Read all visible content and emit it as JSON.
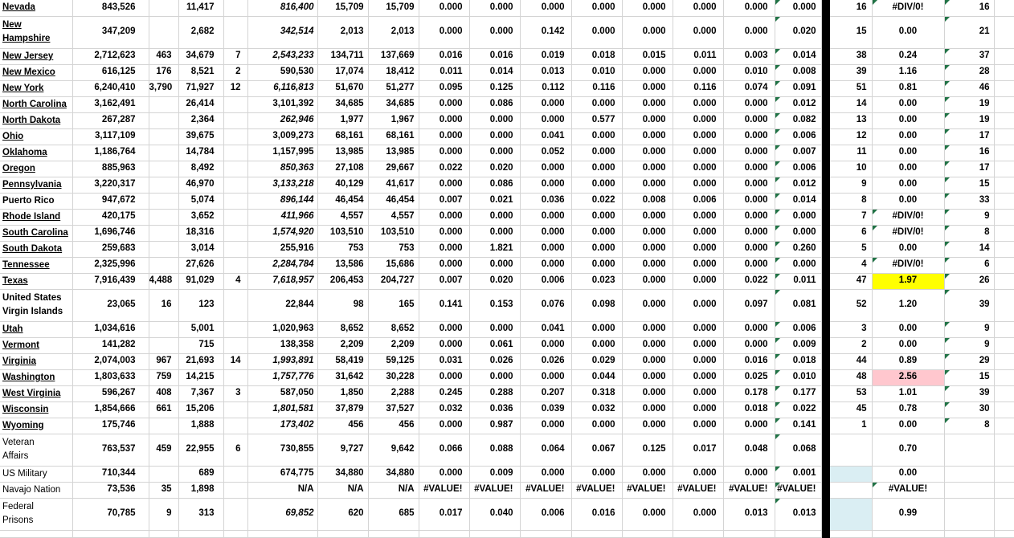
{
  "colors": {
    "highlight_yellow": "#ffff00",
    "highlight_pink": "#ffc7ce",
    "fill_light_blue": "#daeef3",
    "gridline": "#d4d4d4",
    "error_indicator_green": "#217346",
    "separator_black": "#000000"
  },
  "rows": [
    {
      "name": "Nevada",
      "style": "link",
      "b": "843,526",
      "c": "",
      "d": "11,417",
      "e": "",
      "f": "816,400",
      "fi": true,
      "g": "15,709",
      "h": "15,709",
      "dec": [
        "0.000",
        "0.000",
        "0.000",
        "0.000",
        "0.000",
        "0.000",
        "0.000",
        "0.000"
      ],
      "num": "16",
      "ratio": "#DIV/0!",
      "ratioTri": true,
      "last": "16"
    },
    {
      "name": "New\nHampshire",
      "style": "link",
      "tall": true,
      "b": "347,209",
      "c": "",
      "d": "2,682",
      "e": "",
      "f": "342,514",
      "fi": true,
      "g": "2,013",
      "h": "2,013",
      "dec": [
        "0.000",
        "0.000",
        "0.142",
        "0.000",
        "0.000",
        "0.000",
        "0.000",
        "0.020"
      ],
      "num": "15",
      "ratio": "0.00",
      "last": "21"
    },
    {
      "name": "New Jersey",
      "style": "link",
      "b": "2,712,623",
      "c": "463",
      "d": "34,679",
      "e": "7",
      "f": "2,543,233",
      "fi": true,
      "g": "134,711",
      "h": "137,669",
      "dec": [
        "0.016",
        "0.016",
        "0.019",
        "0.018",
        "0.015",
        "0.011",
        "0.003",
        "0.014"
      ],
      "num": "38",
      "ratio": "0.24",
      "last": "37"
    },
    {
      "name": "New Mexico",
      "style": "link",
      "b": "616,125",
      "c": "176",
      "d": "8,521",
      "e": "2",
      "f": "590,530",
      "g": "17,074",
      "h": "18,412",
      "dec": [
        "0.011",
        "0.014",
        "0.013",
        "0.010",
        "0.000",
        "0.000",
        "0.010",
        "0.008"
      ],
      "num": "39",
      "ratio": "1.16",
      "last": "28"
    },
    {
      "name": "New York",
      "style": "link",
      "b": "6,240,410",
      "c": "3,790",
      "d": "71,927",
      "e": "12",
      "f": "6,116,813",
      "fi": true,
      "g": "51,670",
      "h": "51,277",
      "dec": [
        "0.095",
        "0.125",
        "0.112",
        "0.116",
        "0.000",
        "0.116",
        "0.074",
        "0.091"
      ],
      "num": "51",
      "ratio": "0.81",
      "last": "46"
    },
    {
      "name": "North Carolina",
      "style": "link",
      "b": "3,162,491",
      "c": "",
      "d": "26,414",
      "e": "",
      "f": "3,101,392",
      "g": "34,685",
      "h": "34,685",
      "dec": [
        "0.000",
        "0.086",
        "0.000",
        "0.000",
        "0.000",
        "0.000",
        "0.000",
        "0.012"
      ],
      "num": "14",
      "ratio": "0.00",
      "last": "19"
    },
    {
      "name": "North Dakota",
      "style": "link",
      "b": "267,287",
      "c": "",
      "d": "2,364",
      "e": "",
      "f": "262,946",
      "fi": true,
      "g": "1,977",
      "h": "1,967",
      "dec": [
        "0.000",
        "0.000",
        "0.000",
        "0.577",
        "0.000",
        "0.000",
        "0.000",
        "0.082"
      ],
      "num": "13",
      "ratio": "0.00",
      "last": "19"
    },
    {
      "name": "Ohio",
      "style": "link",
      "b": "3,117,109",
      "c": "",
      "d": "39,675",
      "e": "",
      "f": "3,009,273",
      "g": "68,161",
      "h": "68,161",
      "dec": [
        "0.000",
        "0.000",
        "0.041",
        "0.000",
        "0.000",
        "0.000",
        "0.000",
        "0.006"
      ],
      "num": "12",
      "ratio": "0.00",
      "last": "17"
    },
    {
      "name": "Oklahoma",
      "style": "link",
      "b": "1,186,764",
      "c": "",
      "d": "14,784",
      "e": "",
      "f": "1,157,995",
      "g": "13,985",
      "h": "13,985",
      "dec": [
        "0.000",
        "0.000",
        "0.052",
        "0.000",
        "0.000",
        "0.000",
        "0.000",
        "0.007"
      ],
      "num": "11",
      "ratio": "0.00",
      "last": "16"
    },
    {
      "name": "Oregon",
      "style": "link",
      "b": "885,963",
      "c": "",
      "d": "8,492",
      "e": "",
      "f": "850,363",
      "fi": true,
      "g": "27,108",
      "h": "29,667",
      "dec": [
        "0.022",
        "0.020",
        "0.000",
        "0.000",
        "0.000",
        "0.000",
        "0.000",
        "0.006"
      ],
      "num": "10",
      "ratio": "0.00",
      "last": "17"
    },
    {
      "name": "Pennsylvania",
      "style": "link",
      "b": "3,220,317",
      "c": "",
      "d": "46,970",
      "e": "",
      "f": "3,133,218",
      "fi": true,
      "g": "40,129",
      "h": "41,617",
      "dec": [
        "0.000",
        "0.086",
        "0.000",
        "0.000",
        "0.000",
        "0.000",
        "0.000",
        "0.012"
      ],
      "num": "9",
      "ratio": "0.00",
      "last": "15"
    },
    {
      "name": "Puerto Rico",
      "style": "bold",
      "b": "947,672",
      "c": "",
      "d": "5,074",
      "e": "",
      "f": "896,144",
      "fi": true,
      "g": "46,454",
      "h": "46,454",
      "dec": [
        "0.007",
        "0.021",
        "0.036",
        "0.022",
        "0.008",
        "0.006",
        "0.000",
        "0.014"
      ],
      "num": "8",
      "ratio": "0.00",
      "last": "33"
    },
    {
      "name": "Rhode Island",
      "style": "link",
      "b": "420,175",
      "c": "",
      "d": "3,652",
      "e": "",
      "f": "411,966",
      "fi": true,
      "g": "4,557",
      "h": "4,557",
      "dec": [
        "0.000",
        "0.000",
        "0.000",
        "0.000",
        "0.000",
        "0.000",
        "0.000",
        "0.000"
      ],
      "num": "7",
      "ratio": "#DIV/0!",
      "ratioTri": true,
      "last": "9"
    },
    {
      "name": "South Carolina",
      "style": "link",
      "b": "1,696,746",
      "c": "",
      "d": "18,316",
      "e": "",
      "f": "1,574,920",
      "fi": true,
      "g": "103,510",
      "h": "103,510",
      "dec": [
        "0.000",
        "0.000",
        "0.000",
        "0.000",
        "0.000",
        "0.000",
        "0.000",
        "0.000"
      ],
      "num": "6",
      "ratio": "#DIV/0!",
      "ratioTri": true,
      "last": "8"
    },
    {
      "name": "South Dakota",
      "style": "link",
      "b": "259,683",
      "c": "",
      "d": "3,014",
      "e": "",
      "f": "255,916",
      "g": "753",
      "h": "753",
      "dec": [
        "0.000",
        "1.821",
        "0.000",
        "0.000",
        "0.000",
        "0.000",
        "0.000",
        "0.260"
      ],
      "num": "5",
      "ratio": "0.00",
      "last": "14"
    },
    {
      "name": "Tennessee",
      "style": "link",
      "b": "2,325,996",
      "c": "",
      "d": "27,626",
      "e": "",
      "f": "2,284,784",
      "fi": true,
      "g": "13,586",
      "h": "15,686",
      "dec": [
        "0.000",
        "0.000",
        "0.000",
        "0.000",
        "0.000",
        "0.000",
        "0.000",
        "0.000"
      ],
      "num": "4",
      "ratio": "#DIV/0!",
      "ratioTri": true,
      "last": "6"
    },
    {
      "name": "Texas",
      "style": "link",
      "b": "7,916,439",
      "c": "4,488",
      "d": "91,029",
      "e": "4",
      "f": "7,618,957",
      "fi": true,
      "g": "206,453",
      "h": "204,727",
      "dec": [
        "0.007",
        "0.020",
        "0.006",
        "0.023",
        "0.000",
        "0.000",
        "0.022",
        "0.011"
      ],
      "num": "47",
      "ratio": "1.97",
      "ratioBg": "yellow",
      "last": "26"
    },
    {
      "name": "United States\nVirgin Islands",
      "style": "bold",
      "tall": true,
      "b": "23,065",
      "c": "16",
      "d": "123",
      "e": "",
      "f": "22,844",
      "g": "98",
      "h": "165",
      "dec": [
        "0.141",
        "0.153",
        "0.076",
        "0.098",
        "0.000",
        "0.000",
        "0.097",
        "0.081"
      ],
      "num": "52",
      "ratio": "1.20",
      "last": "39"
    },
    {
      "name": "Utah",
      "style": "link",
      "b": "1,034,616",
      "c": "",
      "d": "5,001",
      "e": "",
      "f": "1,020,963",
      "g": "8,652",
      "h": "8,652",
      "dec": [
        "0.000",
        "0.000",
        "0.041",
        "0.000",
        "0.000",
        "0.000",
        "0.000",
        "0.006"
      ],
      "num": "3",
      "ratio": "0.00",
      "last": "9"
    },
    {
      "name": "Vermont",
      "style": "link",
      "b": "141,282",
      "c": "",
      "d": "715",
      "e": "",
      "f": "138,358",
      "g": "2,209",
      "h": "2,209",
      "dec": [
        "0.000",
        "0.061",
        "0.000",
        "0.000",
        "0.000",
        "0.000",
        "0.000",
        "0.009"
      ],
      "num": "2",
      "ratio": "0.00",
      "last": "9"
    },
    {
      "name": "Virginia",
      "style": "link",
      "b": "2,074,003",
      "c": "967",
      "d": "21,693",
      "e": "14",
      "f": "1,993,891",
      "fi": true,
      "g": "58,419",
      "h": "59,125",
      "dec": [
        "0.031",
        "0.026",
        "0.026",
        "0.029",
        "0.000",
        "0.000",
        "0.016",
        "0.018"
      ],
      "num": "44",
      "ratio": "0.89",
      "last": "29"
    },
    {
      "name": "Washington",
      "style": "link",
      "b": "1,803,633",
      "c": "759",
      "d": "14,215",
      "e": "",
      "f": "1,757,776",
      "fi": true,
      "g": "31,642",
      "h": "30,228",
      "dec": [
        "0.000",
        "0.000",
        "0.000",
        "0.044",
        "0.000",
        "0.000",
        "0.025",
        "0.010"
      ],
      "num": "48",
      "ratio": "2.56",
      "ratioBg": "pink",
      "last": "15"
    },
    {
      "name": "West Virginia",
      "style": "link",
      "b": "596,267",
      "c": "408",
      "d": "7,367",
      "e": "3",
      "f": "587,050",
      "g": "1,850",
      "h": "2,288",
      "dec": [
        "0.245",
        "0.288",
        "0.207",
        "0.318",
        "0.000",
        "0.000",
        "0.178",
        "0.177"
      ],
      "num": "53",
      "ratio": "1.01",
      "last": "39"
    },
    {
      "name": "Wisconsin",
      "style": "link",
      "b": "1,854,666",
      "c": "661",
      "d": "15,206",
      "e": "",
      "f": "1,801,581",
      "fi": true,
      "g": "37,879",
      "h": "37,527",
      "dec": [
        "0.032",
        "0.036",
        "0.039",
        "0.032",
        "0.000",
        "0.000",
        "0.018",
        "0.022"
      ],
      "num": "45",
      "ratio": "0.78",
      "last": "30"
    },
    {
      "name": "Wyoming",
      "style": "link",
      "b": "175,746",
      "c": "",
      "d": "1,888",
      "e": "",
      "f": "173,402",
      "fi": true,
      "g": "456",
      "h": "456",
      "dec": [
        "0.000",
        "0.987",
        "0.000",
        "0.000",
        "0.000",
        "0.000",
        "0.000",
        "0.141"
      ],
      "num": "1",
      "ratio": "0.00",
      "last": "8"
    },
    {
      "name": "Veteran\nAffairs",
      "style": "plain",
      "tall": true,
      "b": "763,537",
      "c": "459",
      "d": "22,955",
      "e": "6",
      "f": "730,855",
      "g": "9,727",
      "h": "9,642",
      "dec": [
        "0.066",
        "0.088",
        "0.064",
        "0.067",
        "0.125",
        "0.017",
        "0.048",
        "0.068"
      ],
      "num": "",
      "ratio": "0.70",
      "last": ""
    },
    {
      "name": "US Military",
      "style": "plain",
      "b": "710,344",
      "c": "",
      "d": "689",
      "e": "",
      "f": "674,775",
      "g": "34,880",
      "h": "34,880",
      "dec": [
        "0.000",
        "0.009",
        "0.000",
        "0.000",
        "0.000",
        "0.000",
        "0.000",
        "0.001"
      ],
      "num": "",
      "numBlue": true,
      "ratio": "0.00",
      "last": ""
    },
    {
      "name": "Navajo Nation",
      "style": "plain",
      "b": "73,536",
      "c": "35",
      "d": "1,898",
      "e": "",
      "f": "N/A",
      "g": "N/A",
      "h": "N/A",
      "dec": [
        "#VALUE!",
        "#VALUE!",
        "#VALUE!",
        "#VALUE!",
        "#VALUE!",
        "#VALUE!",
        "#VALUE!",
        "#VALUE!"
      ],
      "num": "",
      "ratio": "#VALUE!",
      "ratioTri": true,
      "last": ""
    },
    {
      "name": "Federal\nPrisons",
      "style": "plain",
      "tall": true,
      "b": "70,785",
      "c": "9",
      "d": "313",
      "e": "",
      "f": "69,852",
      "fi": true,
      "g": "620",
      "h": "685",
      "dec": [
        "0.017",
        "0.040",
        "0.006",
        "0.016",
        "0.000",
        "0.000",
        "0.013",
        "0.013"
      ],
      "num": "",
      "numBlue": true,
      "ratio": "0.99",
      "last": ""
    }
  ]
}
